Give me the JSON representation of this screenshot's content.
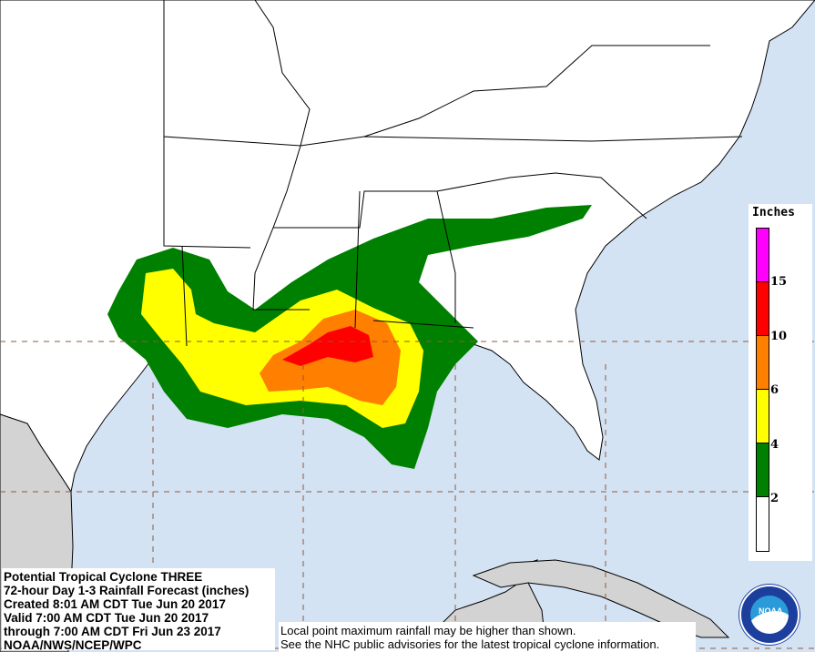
{
  "map": {
    "ocean_color": "#d4e3f4",
    "land_color": "#ffffff",
    "foreign_land_color": "#d3d3d3",
    "grid_line_style": "dashed-brown"
  },
  "info": {
    "title": "Potential Tropical Cyclone THREE",
    "subtitle": "72-hour Day 1-3 Rainfall Forecast (inches)",
    "created": "Created 8:01 AM CDT Tue Jun 20 2017",
    "valid": "Valid 7:00 AM CDT Tue Jun 20 2017",
    "through": "through 7:00 AM CDT Fri Jun 23 2017",
    "source": "NOAA/NWS/NCEP/WPC"
  },
  "note": {
    "line1": "Local point maximum rainfall may be higher than shown.",
    "line2": "See the NHC public advisories for the latest tropical cyclone information."
  },
  "legend": {
    "title": "Inches",
    "segments": [
      {
        "color": "#ff00ff",
        "range": ">15"
      },
      {
        "color": "#ff0000",
        "range": "10-15"
      },
      {
        "color": "#ff7f00",
        "range": "6-10"
      },
      {
        "color": "#ffff00",
        "range": "4-6"
      },
      {
        "color": "#008000",
        "range": "2-4"
      },
      {
        "color": "#ffffff",
        "range": "<2"
      }
    ],
    "labels": [
      "15",
      "10",
      "6",
      "4",
      "2"
    ]
  },
  "logo": {
    "text": "NOAA"
  }
}
